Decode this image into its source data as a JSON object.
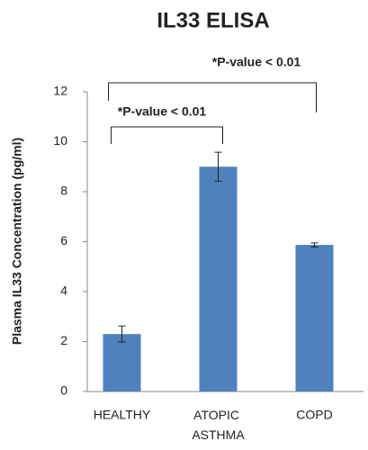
{
  "chart_data": {
    "type": "bar",
    "title": "IL33 ELISA",
    "y_label": "Plasma IL33 Concentration (pg/ml)",
    "categories": [
      "HEALTHY",
      "ATOPIC ASTHMA",
      "COPD"
    ],
    "values": [
      2.3,
      9.0,
      5.87
    ],
    "errors": [
      0.32,
      0.58,
      0.08
    ],
    "color": "#4f81bd",
    "ylim": [
      0,
      12
    ],
    "yticks": [
      0,
      2,
      4,
      6,
      8,
      10,
      12
    ],
    "grid": false,
    "annotations": [
      "*P-value < 0.01",
      "*P-value < 0.01"
    ]
  }
}
